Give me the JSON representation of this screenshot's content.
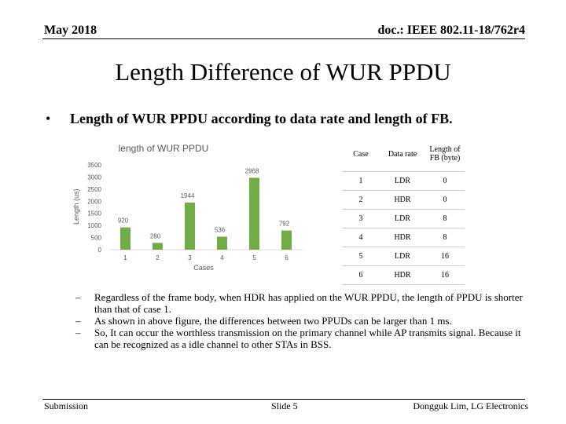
{
  "header": {
    "left": "May 2018",
    "right": "doc.: IEEE 802.11-18/762r4"
  },
  "title": "Length Difference of WUR PPDU",
  "bullet": {
    "marker": "•",
    "text": "Length of WUR PPDU according to data rate and length of FB."
  },
  "chart_data": {
    "type": "bar",
    "title": "length of WUR PPDU",
    "xlabel": "Cases",
    "ylabel": "Length (us)",
    "categories": [
      "1",
      "2",
      "3",
      "4",
      "5",
      "6"
    ],
    "values": [
      920,
      280,
      1944,
      536,
      2968,
      792
    ],
    "data_labels": [
      "920",
      "280",
      "1944",
      "536",
      "2968",
      "792"
    ],
    "ylim": [
      0,
      3500
    ],
    "yticks": [
      "0",
      "500",
      "1000",
      "1500",
      "2000",
      "2500",
      "3000",
      "3500"
    ],
    "grid": false,
    "legend": "none",
    "colors": {
      "bar": "#70ad47",
      "axis_text": "#595959",
      "title": "#595959"
    }
  },
  "table": {
    "headers": [
      "Case",
      "Data rate",
      "Length of FB (byte)"
    ],
    "rows": [
      [
        "1",
        "LDR",
        "0"
      ],
      [
        "2",
        "HDR",
        "0"
      ],
      [
        "3",
        "LDR",
        "8"
      ],
      [
        "4",
        "HDR",
        "8"
      ],
      [
        "5",
        "LDR",
        "16"
      ],
      [
        "6",
        "HDR",
        "16"
      ]
    ]
  },
  "points": [
    {
      "marker": "–",
      "text": "Regardless of the frame body, when HDR has applied on the WUR PPDU, the length of PPDU is shorter than that of case 1."
    },
    {
      "marker": "–",
      "text": "As shown in above figure, the differences between two PPUDs can be larger than 1 ms."
    },
    {
      "marker": "–",
      "text": "So, It can occur the worthless transmission on the primary channel while AP transmits signal. Because it can be recognized as a idle channel to other STAs in BSS."
    }
  ],
  "footer": {
    "left": "Submission",
    "center": "Slide 5",
    "right": "Dongguk Lim, LG Electronics"
  }
}
